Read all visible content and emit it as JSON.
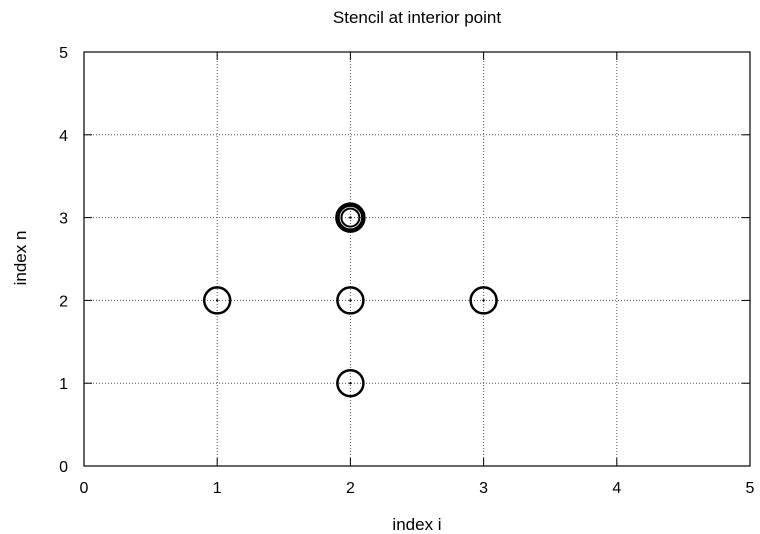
{
  "chart_data": {
    "type": "scatter",
    "title": "Stencil at interior point",
    "xlabel": "index i",
    "ylabel": "index n",
    "xlim": [
      0,
      5
    ],
    "ylim": [
      0,
      5
    ],
    "x_ticks": [
      0,
      1,
      2,
      3,
      4,
      5
    ],
    "y_ticks": [
      0,
      1,
      2,
      3,
      4,
      5
    ],
    "grid": true,
    "grid_style": "dotted",
    "points": [
      {
        "x": 1,
        "y": 2,
        "marker": "open-circle"
      },
      {
        "x": 2,
        "y": 2,
        "marker": "open-circle"
      },
      {
        "x": 3,
        "y": 2,
        "marker": "open-circle"
      },
      {
        "x": 2,
        "y": 1,
        "marker": "open-circle"
      },
      {
        "x": 2,
        "y": 3,
        "marker": "open-circle-bold"
      }
    ],
    "colors": {
      "marker": "#000000",
      "grid": "#555555",
      "axes": "#000000"
    }
  }
}
